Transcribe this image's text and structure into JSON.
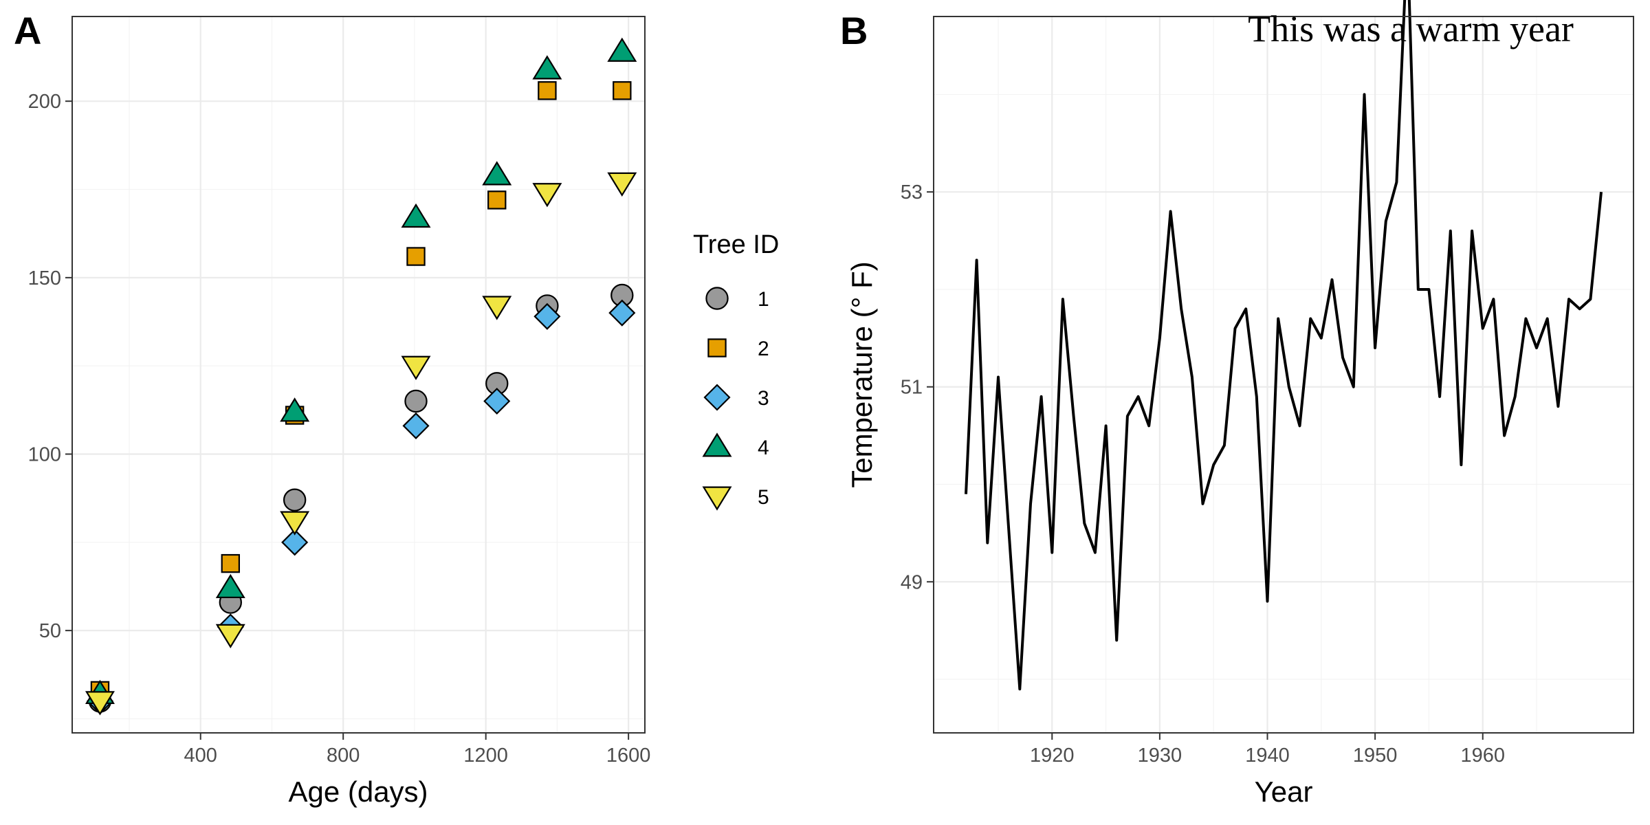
{
  "chart_data": [
    {
      "type": "scatter",
      "panel_label": "A",
      "xlabel": "Age (days)",
      "ylabel": "",
      "xlim": [
        40,
        1646
      ],
      "ylim": [
        21,
        224
      ],
      "x_ticks": [
        400,
        800,
        1200,
        1600
      ],
      "y_ticks": [
        50,
        100,
        150,
        200
      ],
      "grid": true,
      "legend": {
        "title": "Tree ID",
        "position": "right"
      },
      "x": [
        118,
        484,
        664,
        1004,
        1231,
        1372,
        1582
      ],
      "series": [
        {
          "name": "1",
          "shape": "circle",
          "color": "#999999",
          "values": [
            30,
            58,
            87,
            115,
            120,
            142,
            145
          ]
        },
        {
          "name": "2",
          "shape": "square",
          "color": "#E69F00",
          "values": [
            33,
            69,
            111,
            156,
            172,
            203,
            203
          ]
        },
        {
          "name": "3",
          "shape": "diamond",
          "color": "#56B4E9",
          "values": [
            30,
            51,
            75,
            108,
            115,
            139,
            140
          ]
        },
        {
          "name": "4",
          "shape": "triangle-up",
          "color": "#009E73",
          "values": [
            32,
            62,
            112,
            167,
            179,
            209,
            214
          ]
        },
        {
          "name": "5",
          "shape": "triangle-down",
          "color": "#F0E442",
          "values": [
            30,
            49,
            81,
            125,
            142,
            174,
            177
          ]
        }
      ]
    },
    {
      "type": "line",
      "panel_label": "B",
      "xlabel": "Year",
      "ylabel": "Temperature  (° F)",
      "xlim": [
        1909,
        1974
      ],
      "ylim": [
        47.45,
        54.8
      ],
      "x_ticks": [
        1920,
        1930,
        1940,
        1950,
        1960
      ],
      "y_ticks": [
        49,
        51,
        53
      ],
      "grid": true,
      "annotation": "This was a warm year",
      "line_color": "#000000",
      "x": [
        1912,
        1913,
        1914,
        1915,
        1916,
        1917,
        1918,
        1919,
        1920,
        1921,
        1922,
        1923,
        1924,
        1925,
        1926,
        1927,
        1928,
        1929,
        1930,
        1931,
        1932,
        1933,
        1934,
        1935,
        1936,
        1937,
        1938,
        1939,
        1940,
        1941,
        1942,
        1943,
        1944,
        1945,
        1946,
        1947,
        1948,
        1949,
        1950,
        1951,
        1952,
        1953,
        1954,
        1955,
        1956,
        1957,
        1958,
        1959,
        1960,
        1961,
        1962,
        1963,
        1964,
        1965,
        1966,
        1967,
        1968,
        1969,
        1970,
        1971
      ],
      "values": [
        49.9,
        52.3,
        49.4,
        51.1,
        49.5,
        47.9,
        49.8,
        50.9,
        49.3,
        51.9,
        50.7,
        49.6,
        49.3,
        50.6,
        48.4,
        50.7,
        50.9,
        50.6,
        51.5,
        52.8,
        51.8,
        51.1,
        49.8,
        50.2,
        50.4,
        51.6,
        51.8,
        50.9,
        48.8,
        51.7,
        51.0,
        50.6,
        51.7,
        51.5,
        52.1,
        51.3,
        51.0,
        54.0,
        51.4,
        52.7,
        53.1,
        55.6,
        52.0,
        52.0,
        50.9,
        52.6,
        50.2,
        52.6,
        51.6,
        51.9,
        50.5,
        50.9,
        51.7,
        51.4,
        51.7,
        50.8,
        51.9,
        51.8,
        51.9,
        53.0
      ]
    }
  ]
}
